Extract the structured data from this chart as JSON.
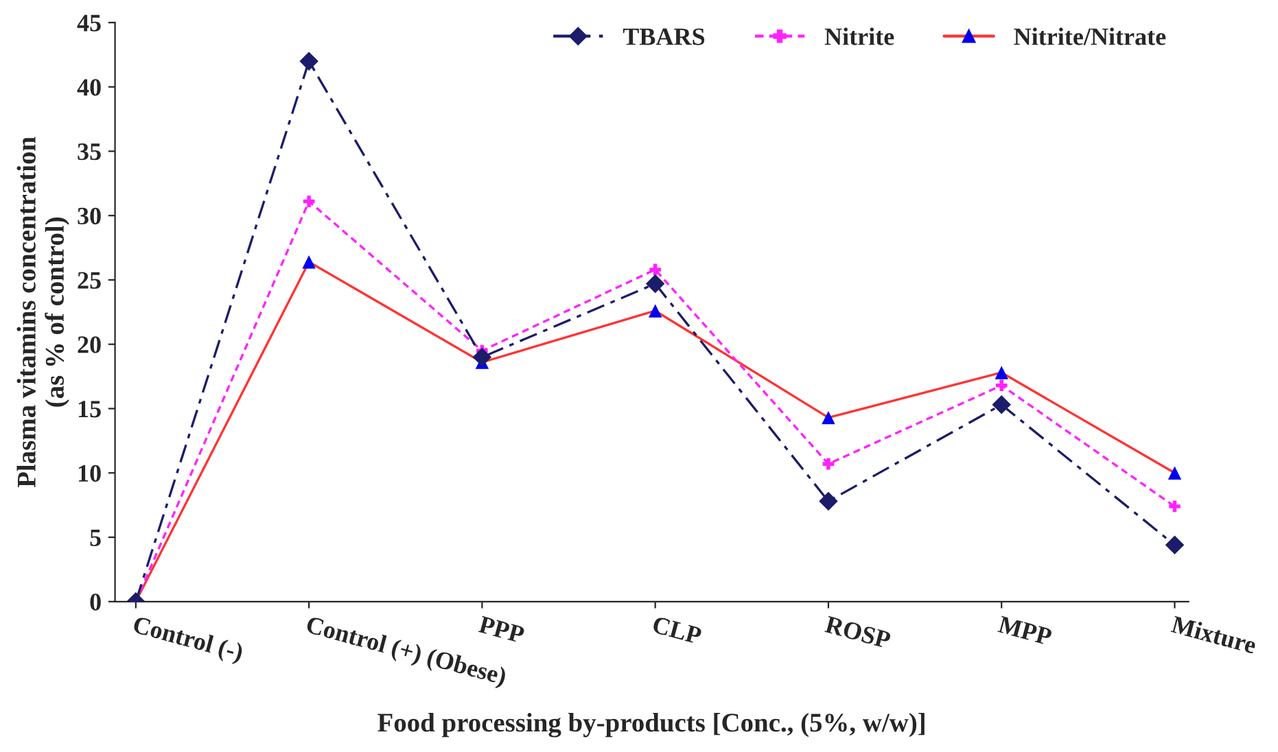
{
  "chart_data": {
    "type": "line",
    "xlabel": "Food processing by-products [Conc., (5%, w/w)]",
    "ylabel": "Plasma vitamins concentration\n(as % of control)",
    "categories": [
      "Control (-)",
      "Control (+) (Obese)",
      "PPP",
      "CLP",
      "ROSP",
      "MPP",
      "Mixture"
    ],
    "series": [
      {
        "name": "TBARS",
        "color": "#1c1c6b",
        "marker": "diamond",
        "line_style": "dashed",
        "values": [
          0,
          42,
          19,
          24.7,
          7.8,
          15.3,
          4.4
        ]
      },
      {
        "name": "Nitrite",
        "color": "#ff22ff",
        "marker": "cross",
        "line_style": "dotted",
        "values": [
          0,
          31.1,
          19.5,
          25.8,
          10.7,
          16.8,
          7.4
        ]
      },
      {
        "name": "Nitrite/Nitrate",
        "color": "#ff3333",
        "colors": [
          "#0000ee",
          "#0000ee",
          "#0000ee",
          "#0000ee",
          "#0000ee",
          "#0000ee",
          "#0000ee"
        ],
        "marker": "triangle",
        "line_style": "solid",
        "values": [
          0,
          26.4,
          18.6,
          22.6,
          14.3,
          17.8,
          10
        ]
      }
    ],
    "ylim": [
      0,
      45
    ],
    "yticks": [
      0,
      5,
      10,
      15,
      20,
      25,
      30,
      35,
      40,
      45
    ],
    "grid": false,
    "legend": "top right"
  }
}
